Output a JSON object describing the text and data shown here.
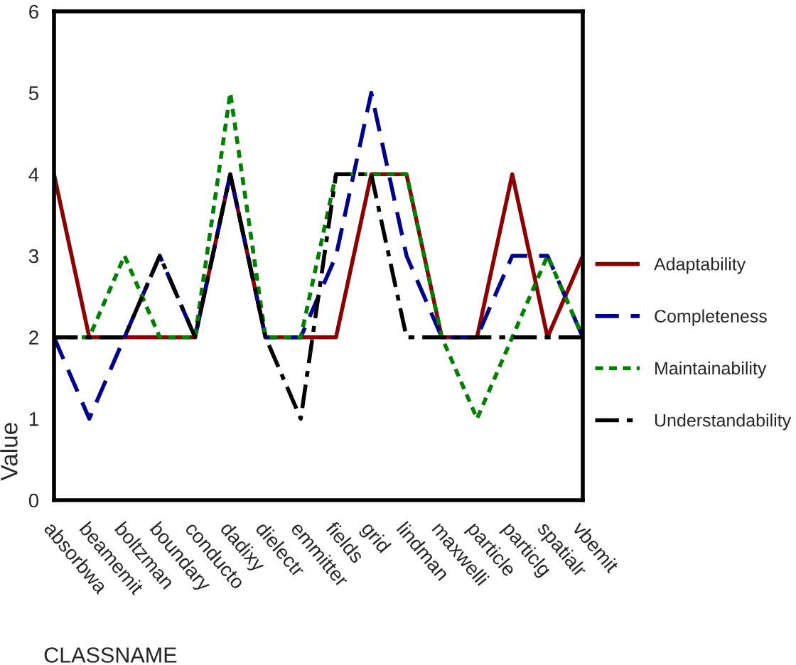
{
  "chart_data": {
    "type": "line",
    "xlabel": "CLASSNAME",
    "ylabel": "Value",
    "categories": [
      "absorbwa",
      "beamemit",
      "boltzman",
      "boundary",
      "conducto",
      "dadixy",
      "dielectr",
      "emmitter",
      "fields",
      "grid",
      "lindman",
      "maxwelli",
      "particle",
      "particlg",
      "spatialr",
      "vbemit"
    ],
    "series": [
      {
        "name": "Adaptability",
        "color": "#8b0000",
        "line_style": "solid",
        "values": [
          4,
          2,
          2,
          2,
          2,
          4,
          2,
          2,
          2,
          4,
          4,
          2,
          2,
          4,
          2,
          3
        ]
      },
      {
        "name": "Completeness",
        "color": "#00008b",
        "line_style": "dashed",
        "values": [
          2,
          1,
          2,
          3,
          2,
          4,
          2,
          2,
          3,
          5,
          3,
          2,
          2,
          3,
          3,
          2
        ]
      },
      {
        "name": "Maintainability",
        "color": "#008000",
        "line_style": "dotted",
        "values": [
          2,
          2,
          3,
          2,
          2,
          5,
          2,
          2,
          4,
          4,
          4,
          2,
          1,
          2,
          3,
          2
        ]
      },
      {
        "name": "Understandability",
        "color": "#000000",
        "line_style": "dashdot",
        "values": [
          2,
          2,
          2,
          3,
          2,
          4,
          2,
          1,
          4,
          4,
          2,
          2,
          2,
          2,
          2,
          2
        ]
      }
    ],
    "ylim": [
      0,
      6
    ],
    "yticks": [
      0,
      1,
      2,
      3,
      4,
      5,
      6
    ],
    "grid": false,
    "legend": "right",
    "marker": "none"
  }
}
